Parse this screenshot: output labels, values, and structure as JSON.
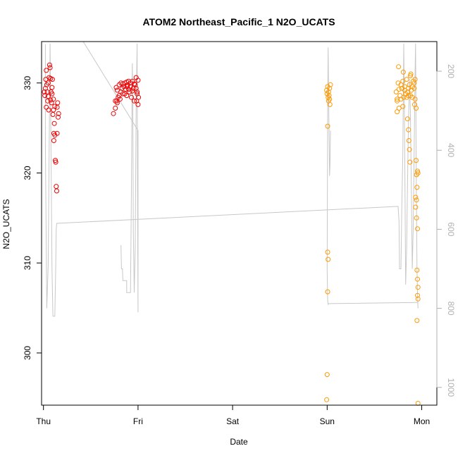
{
  "chart_data": {
    "type": "scatter",
    "title": "ATOM2 Northeast_Pacific_1 N2O_UCATS",
    "xlabel": "Date",
    "ylabel": "N2O_UCATS",
    "x_ticks": [
      {
        "label": "Thu",
        "day": 0
      },
      {
        "label": "Fri",
        "day": 1
      },
      {
        "label": "Sat",
        "day": 2
      },
      {
        "label": "Sun",
        "day": 3
      },
      {
        "label": "Mon",
        "day": 4
      }
    ],
    "xlim_days": [
      -0.02,
      4.16
    ],
    "ylim": [
      294.2,
      334.6
    ],
    "y_ticks": [
      300,
      310,
      320,
      330
    ],
    "y2_ticks": [
      200,
      400,
      600,
      800,
      1000
    ],
    "y2lim": [
      1045,
      125
    ],
    "grid": false,
    "colors": {
      "series_a": "#ee0000",
      "series_b": "#ff9900",
      "line": "#c8c8c8",
      "axis": "#000000",
      "right_axis": "#b0b0b0"
    },
    "series": [
      {
        "color": "#ee0000",
        "points": [
          [
            0.01,
            329.0
          ],
          [
            0.02,
            329.4
          ],
          [
            0.015,
            328.6
          ],
          [
            0.025,
            330.4
          ],
          [
            0.03,
            331.4
          ],
          [
            0.035,
            329.8
          ],
          [
            0.04,
            329.0
          ],
          [
            0.045,
            328.0
          ],
          [
            0.05,
            328.5
          ],
          [
            0.055,
            327.0
          ],
          [
            0.06,
            330.6
          ],
          [
            0.065,
            332.0
          ],
          [
            0.07,
            331.7
          ],
          [
            0.075,
            328.1
          ],
          [
            0.08,
            329.0
          ],
          [
            0.085,
            327.8
          ],
          [
            0.09,
            328.8
          ],
          [
            0.095,
            330.4
          ],
          [
            0.1,
            326.5
          ],
          [
            0.105,
            328.2
          ],
          [
            0.11,
            324.4
          ],
          [
            0.115,
            325.5
          ],
          [
            0.12,
            324.2
          ],
          [
            0.125,
            321.4
          ],
          [
            0.13,
            321.2
          ],
          [
            0.135,
            318.5
          ],
          [
            0.14,
            318.0
          ],
          [
            0.145,
            324.4
          ],
          [
            0.15,
            327.8
          ],
          [
            0.155,
            326.2
          ],
          [
            0.16,
            326.6
          ],
          [
            0.145,
            327.3
          ],
          [
            0.03,
            327.3
          ],
          [
            0.05,
            330.0
          ],
          [
            0.075,
            330.5
          ],
          [
            0.09,
            329.5
          ],
          [
            0.105,
            327.0
          ],
          [
            0.11,
            323.6
          ],
          [
            0.12,
            327.4
          ],
          [
            0.74,
            326.6
          ],
          [
            0.76,
            328.0
          ],
          [
            0.77,
            329.5
          ],
          [
            0.78,
            327.8
          ],
          [
            0.79,
            328.4
          ],
          [
            0.8,
            329.8
          ],
          [
            0.81,
            328.2
          ],
          [
            0.82,
            330.0
          ],
          [
            0.83,
            329.4
          ],
          [
            0.84,
            328.8
          ],
          [
            0.85,
            329.6
          ],
          [
            0.86,
            330.0
          ],
          [
            0.87,
            329.3
          ],
          [
            0.88,
            328.6
          ],
          [
            0.89,
            329.8
          ],
          [
            0.9,
            330.2
          ],
          [
            0.91,
            329.0
          ],
          [
            0.92,
            329.6
          ],
          [
            0.93,
            328.4
          ],
          [
            0.94,
            330.2
          ],
          [
            0.95,
            329.4
          ],
          [
            0.96,
            328.0
          ],
          [
            0.97,
            329.8
          ],
          [
            0.98,
            330.6
          ],
          [
            0.99,
            329.0
          ],
          [
            1.0,
            327.6
          ],
          [
            1.005,
            328.4
          ],
          [
            0.76,
            327.2
          ],
          [
            0.78,
            329.2
          ],
          [
            0.8,
            328.6
          ],
          [
            0.82,
            329.0
          ],
          [
            0.84,
            329.9
          ],
          [
            0.86,
            328.8
          ],
          [
            0.88,
            330.1
          ],
          [
            0.9,
            329.3
          ],
          [
            0.92,
            330.0
          ],
          [
            0.94,
            329.1
          ],
          [
            0.96,
            329.9
          ],
          [
            0.98,
            329.4
          ],
          [
            1.0,
            330.3
          ],
          [
            0.775,
            328.0
          ],
          [
            0.885,
            329.6
          ],
          [
            0.985,
            328.0
          ],
          [
            0.99,
            328.8
          ]
        ]
      },
      {
        "color": "#ff9900",
        "points": [
          [
            2.995,
            329.2
          ],
          [
            3.0,
            328.8
          ],
          [
            3.005,
            329.6
          ],
          [
            3.01,
            328.4
          ],
          [
            3.015,
            329.0
          ],
          [
            3.02,
            328.6
          ],
          [
            3.025,
            329.4
          ],
          [
            3.03,
            327.6
          ],
          [
            3.035,
            329.8
          ],
          [
            3.005,
            325.2
          ],
          [
            3.005,
            311.2
          ],
          [
            3.01,
            310.4
          ],
          [
            3.005,
            306.8
          ],
          [
            3.0,
            297.6
          ],
          [
            2.995,
            294.8
          ],
          [
            3.015,
            328.0
          ],
          [
            3.025,
            328.2
          ],
          [
            3.73,
            329.0
          ],
          [
            3.74,
            328.2
          ],
          [
            3.75,
            330.0
          ],
          [
            3.755,
            331.8
          ],
          [
            3.76,
            329.3
          ],
          [
            3.77,
            328.6
          ],
          [
            3.78,
            329.8
          ],
          [
            3.79,
            329.4
          ],
          [
            3.8,
            330.2
          ],
          [
            3.805,
            331.2
          ],
          [
            3.81,
            328.4
          ],
          [
            3.82,
            329.6
          ],
          [
            3.83,
            328.8
          ],
          [
            3.84,
            330.4
          ],
          [
            3.85,
            329.0
          ],
          [
            3.86,
            328.6
          ],
          [
            3.87,
            329.8
          ],
          [
            3.88,
            330.8
          ],
          [
            3.885,
            331.0
          ],
          [
            3.89,
            329.2
          ],
          [
            3.9,
            328.4
          ],
          [
            3.91,
            330.2
          ],
          [
            3.92,
            329.4
          ],
          [
            3.925,
            327.6
          ],
          [
            3.93,
            330.4
          ],
          [
            3.74,
            328.0
          ],
          [
            3.76,
            327.2
          ],
          [
            3.78,
            328.2
          ],
          [
            3.8,
            327.4
          ],
          [
            3.82,
            329.2
          ],
          [
            3.84,
            328.4
          ],
          [
            3.86,
            329.4
          ],
          [
            3.88,
            328.6
          ],
          [
            3.9,
            329.6
          ],
          [
            3.92,
            330.0
          ],
          [
            3.74,
            326.8
          ],
          [
            3.85,
            326.0
          ],
          [
            3.86,
            324.8
          ],
          [
            3.865,
            323.6
          ],
          [
            3.87,
            322.6
          ],
          [
            3.875,
            321.2
          ],
          [
            3.93,
            328.2
          ],
          [
            3.935,
            317.3
          ],
          [
            3.94,
            321.4
          ],
          [
            3.945,
            319.8
          ],
          [
            3.95,
            318.4
          ],
          [
            3.955,
            313.8
          ],
          [
            3.935,
            316.2
          ],
          [
            3.945,
            317.0
          ],
          [
            3.95,
            309.2
          ],
          [
            3.955,
            308.2
          ],
          [
            3.96,
            307.3
          ],
          [
            3.955,
            306.4
          ],
          [
            3.96,
            306.0
          ],
          [
            3.95,
            303.6
          ],
          [
            3.96,
            294.4
          ],
          [
            3.955,
            320.2
          ],
          [
            3.96,
            320.0
          ],
          [
            3.94,
            327.2
          ],
          [
            3.945,
            315.0
          ]
        ]
      }
    ],
    "pressure_line": {
      "segments": [
        [
          [
            0.02,
            132
          ],
          [
            0.02,
            385
          ],
          [
            0.035,
            800
          ],
          [
            0.05,
            690
          ],
          [
            0.06,
            410
          ],
          [
            0.07,
            130
          ],
          [
            0.08,
            400
          ],
          [
            0.09,
            700
          ],
          [
            0.1,
            820
          ],
          [
            0.12,
            820
          ],
          [
            0.13,
            695
          ],
          [
            0.135,
            600
          ],
          [
            0.14,
            585
          ],
          [
            3.75,
            542
          ],
          [
            3.76,
            580
          ],
          [
            3.765,
            700
          ],
          [
            3.78,
            700
          ],
          [
            3.79,
            540
          ],
          [
            3.8,
            410
          ],
          [
            3.81,
            130
          ],
          [
            3.82,
            400
          ],
          [
            3.83,
            740
          ],
          [
            3.84,
            650
          ],
          [
            3.85,
            480
          ],
          [
            3.86,
            330
          ],
          [
            3.87,
            220
          ],
          [
            3.88,
            300
          ],
          [
            3.89,
            500
          ],
          [
            3.9,
            700
          ],
          [
            3.91,
            600
          ],
          [
            3.92,
            400
          ],
          [
            3.93,
            200
          ],
          [
            3.935,
            130
          ],
          [
            3.94,
            410
          ],
          [
            3.95,
            700
          ],
          [
            3.955,
            760
          ],
          [
            3.96,
            800
          ]
        ],
        [
          [
            3.96,
            785
          ],
          [
            3.02,
            788
          ],
          [
            3.01,
            790
          ],
          [
            3.005,
            780
          ],
          [
            3.0,
            700
          ],
          [
            3.005,
            300
          ],
          [
            3.01,
            140
          ],
          [
            3.015,
            250
          ],
          [
            3.025,
            465
          ],
          [
            3.03,
            440
          ],
          [
            3.035,
            350
          ]
        ],
        [
          [
            0.42,
            125
          ],
          [
            1.0,
            350
          ],
          [
            1.0,
            810
          ],
          [
            0.995,
            500
          ],
          [
            0.99,
            130
          ],
          [
            0.98,
            300
          ],
          [
            0.97,
            650
          ],
          [
            0.96,
            760
          ],
          [
            0.95,
            600
          ],
          [
            0.945,
            300
          ],
          [
            0.94,
            180
          ],
          [
            0.935,
            300
          ],
          [
            0.93,
            500
          ],
          [
            0.925,
            650
          ],
          [
            0.92,
            760
          ],
          [
            0.88,
            760
          ],
          [
            0.88,
            730
          ],
          [
            0.84,
            730
          ],
          [
            0.835,
            700
          ],
          [
            0.825,
            700
          ],
          [
            0.82,
            640
          ]
        ]
      ]
    }
  }
}
